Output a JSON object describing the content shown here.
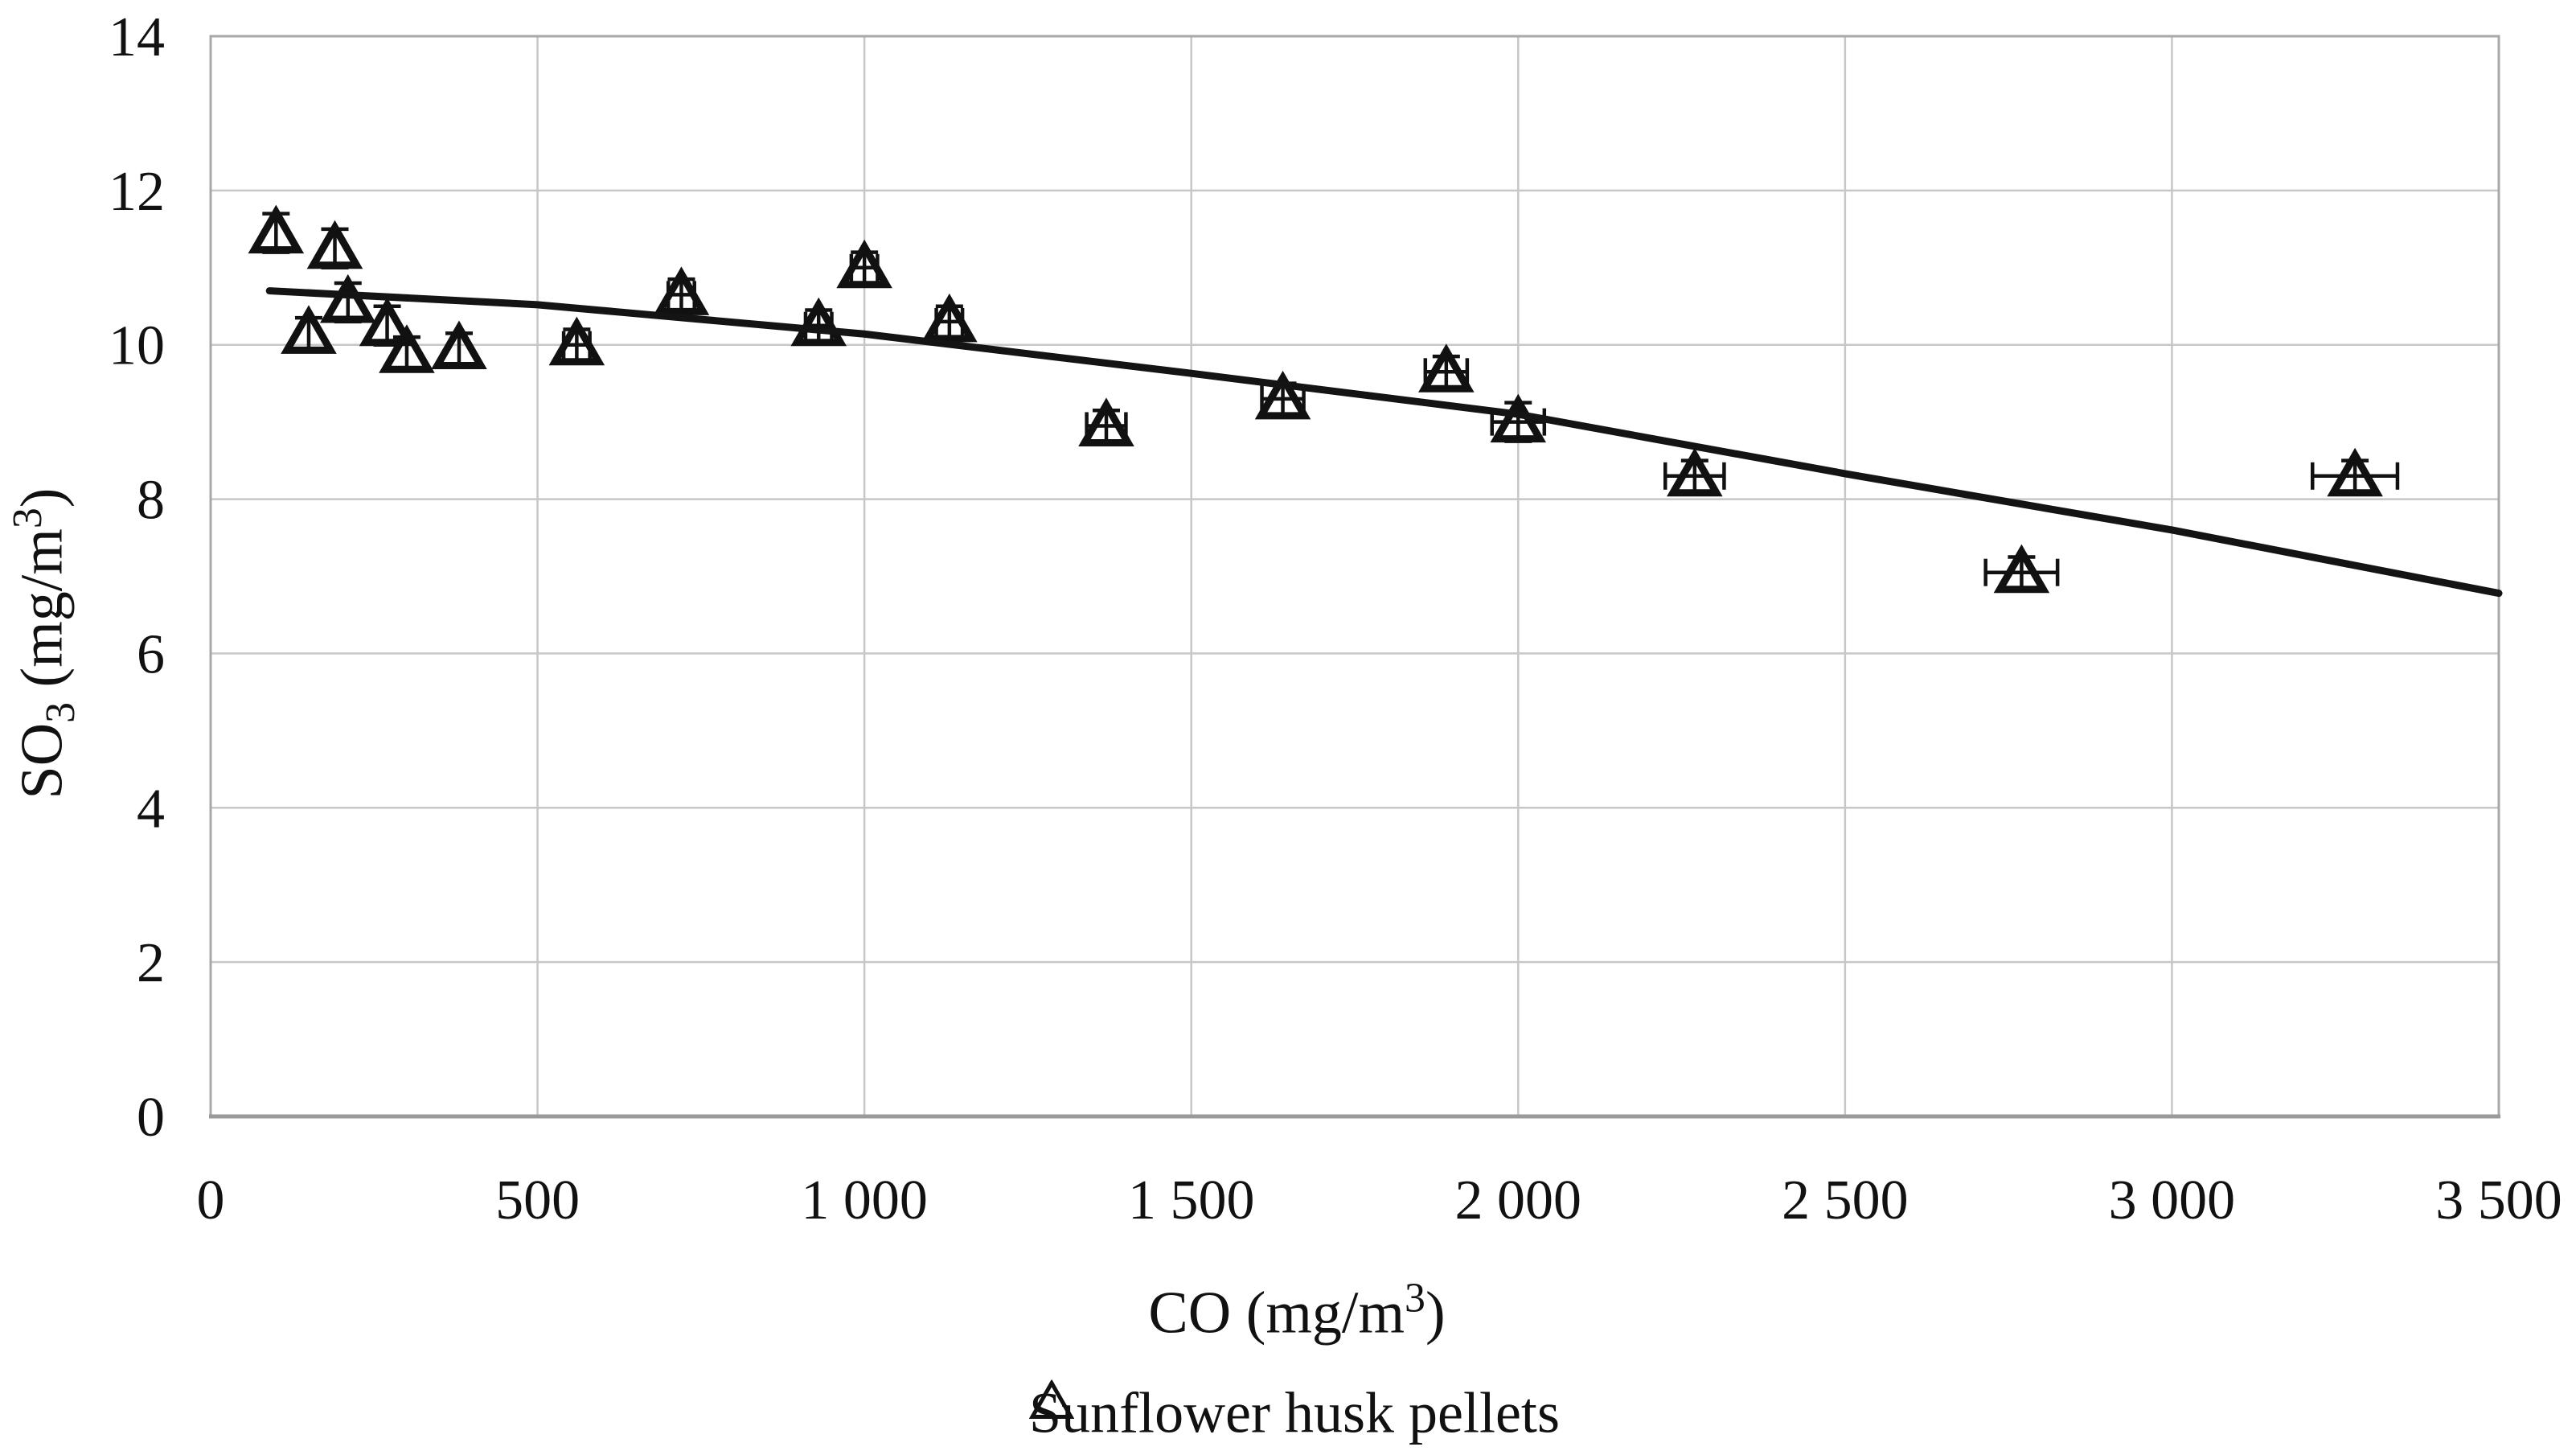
{
  "chart_data": {
    "type": "scatter",
    "title": "",
    "xlabel": "CO (mg/m³)",
    "ylabel": "SO₃ (mg/m³)",
    "xlim": [
      0,
      3500
    ],
    "ylim": [
      0,
      14
    ],
    "grid": true,
    "x_tick_labels": [
      "0",
      "500",
      "1 000",
      "1 500",
      "2 000",
      "2 500",
      "3 000",
      "3 500"
    ],
    "x_tick_values": [
      0,
      500,
      1000,
      1500,
      2000,
      2500,
      3000,
      3500
    ],
    "y_tick_labels": [
      "0",
      "2",
      "4",
      "6",
      "8",
      "10",
      "12",
      "14"
    ],
    "y_tick_values": [
      0,
      2,
      4,
      6,
      8,
      10,
      12,
      14
    ],
    "legend": {
      "position": "bottom",
      "marker": "open-triangle",
      "label": "Sunflower husk pellets"
    },
    "series": [
      {
        "name": "Sunflower husk pellets",
        "marker": "open-triangle",
        "points": [
          {
            "x": 100,
            "y": 11.45,
            "xerr": 0,
            "yerr": 0.25
          },
          {
            "x": 150,
            "y": 10.15,
            "xerr": 0,
            "yerr": 0.2
          },
          {
            "x": 190,
            "y": 11.25,
            "xerr": 0,
            "yerr": 0.25
          },
          {
            "x": 210,
            "y": 10.55,
            "xerr": 0,
            "yerr": 0.25
          },
          {
            "x": 270,
            "y": 10.25,
            "xerr": 0,
            "yerr": 0.25
          },
          {
            "x": 300,
            "y": 9.9,
            "xerr": 0,
            "yerr": 0.2
          },
          {
            "x": 380,
            "y": 9.95,
            "xerr": 0,
            "yerr": 0.2
          },
          {
            "x": 560,
            "y": 10.0,
            "xerr": 20,
            "yerr": 0.2
          },
          {
            "x": 720,
            "y": 10.65,
            "xerr": 20,
            "yerr": 0.2
          },
          {
            "x": 930,
            "y": 10.25,
            "xerr": 20,
            "yerr": 0.2
          },
          {
            "x": 1000,
            "y": 11.0,
            "xerr": 20,
            "yerr": 0.2
          },
          {
            "x": 1130,
            "y": 10.3,
            "xerr": 20,
            "yerr": 0.2
          },
          {
            "x": 1370,
            "y": 8.95,
            "xerr": 30,
            "yerr": 0.2
          },
          {
            "x": 1640,
            "y": 9.3,
            "xerr": 32,
            "yerr": 0.2
          },
          {
            "x": 1890,
            "y": 9.65,
            "xerr": 32,
            "yerr": 0.2
          },
          {
            "x": 2000,
            "y": 9.0,
            "xerr": 40,
            "yerr": 0.25
          },
          {
            "x": 2270,
            "y": 8.3,
            "xerr": 45,
            "yerr": 0.2
          },
          {
            "x": 2770,
            "y": 7.05,
            "xerr": 55,
            "yerr": 0.2
          },
          {
            "x": 3280,
            "y": 8.3,
            "xerr": 65,
            "yerr": 0.2
          }
        ]
      }
    ],
    "trend_line": {
      "style": "solid",
      "points": [
        [
          90,
          10.7
        ],
        [
          500,
          10.52
        ],
        [
          1000,
          10.14
        ],
        [
          1500,
          9.63
        ],
        [
          2000,
          9.1
        ],
        [
          2500,
          8.33
        ],
        [
          3000,
          7.6
        ],
        [
          3500,
          6.78
        ]
      ]
    }
  },
  "labels": {
    "xlabel_base": "CO (mg/m",
    "xlabel_sup": "3",
    "xlabel_close": ")",
    "ylabel_base": "SO",
    "ylabel_sub": "3",
    "ylabel_mid": " (mg/m",
    "ylabel_sup": "3",
    "ylabel_close": ")"
  },
  "colors": {
    "marker": "#111111",
    "error_bar": "#111111",
    "trend": "#141414",
    "gridline": "#c7c7c7",
    "plot_border": "#a8a8a8",
    "axis_line": "#9a9a9a",
    "text": "#111111",
    "background": "#ffffff"
  }
}
